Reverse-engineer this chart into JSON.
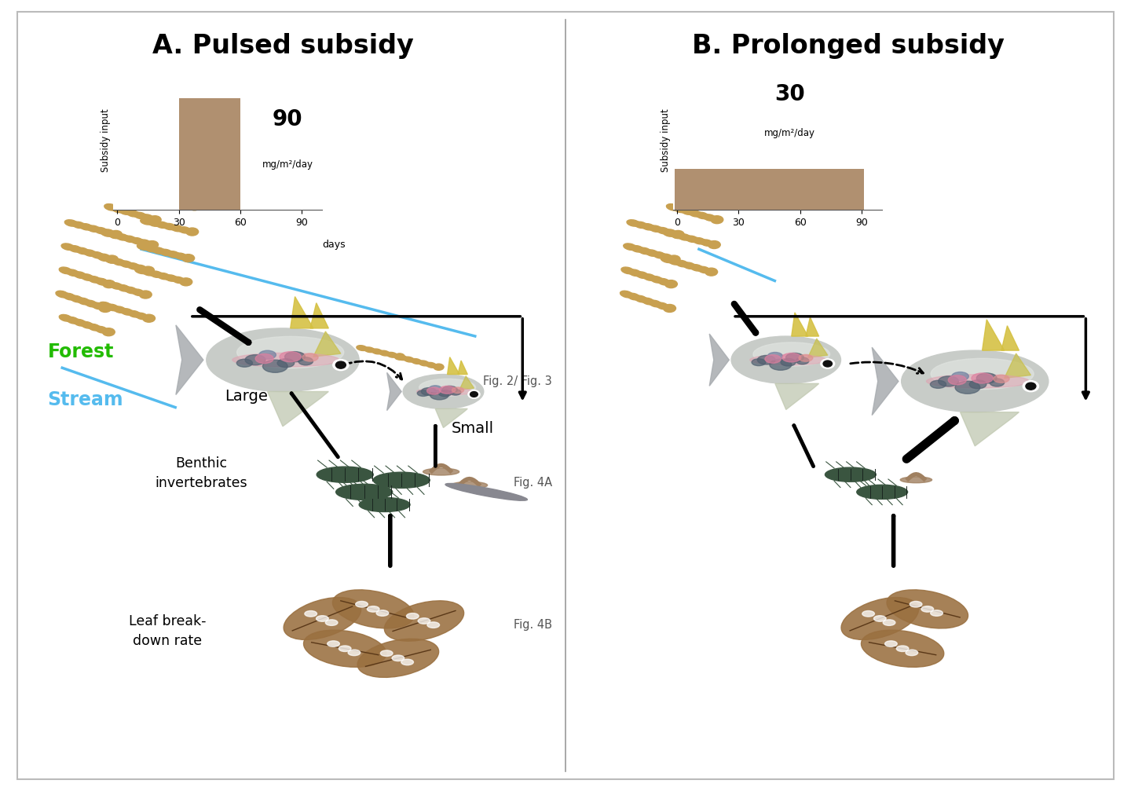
{
  "title_A": "A. Pulsed subsidy",
  "title_B": "B. Prolonged subsidy",
  "bar_color": "#b09070",
  "value_A": "90",
  "value_B": "30",
  "unit_text": "mg/m²/day",
  "ylabel_bar": "Subsidy input",
  "xlabel_days": "days",
  "forest_color": "#22bb00",
  "stream_color": "#55bbee",
  "forest_label": "Forest",
  "stream_label": "Stream",
  "label_large": "Large",
  "label_small": "Small",
  "label_benthic": "Benthic\ninvertebrates",
  "label_leaf": "Leaf break-\ndown rate",
  "label_fig23": "Fig. 2/ Fig. 3",
  "label_fig4A": "Fig. 4A",
  "label_fig4B": "Fig. 4B",
  "bg_color": "#ffffff",
  "border_color": "#bbbbbb",
  "insect_color": "#c8a050",
  "bug_color_dark": "#3a5540",
  "bug_color_tan": "#a08060",
  "bug_color_grey": "#7a8880",
  "leaf_color": "#9a7040"
}
